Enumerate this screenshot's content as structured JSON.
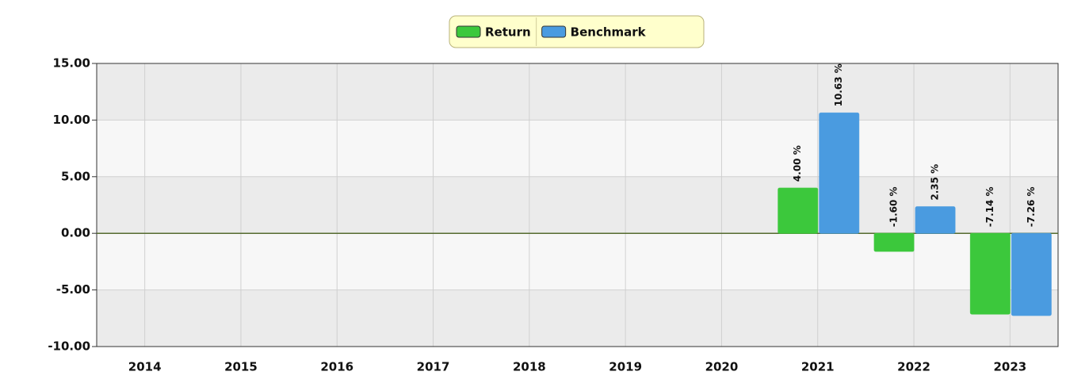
{
  "chart_data": {
    "type": "bar",
    "categories": [
      "2014",
      "2015",
      "2016",
      "2017",
      "2018",
      "2019",
      "2020",
      "2021",
      "2022",
      "2023"
    ],
    "series": [
      {
        "name": "Return",
        "color": "#3cc83c",
        "label_color": "#1f7f1f",
        "values": [
          null,
          null,
          null,
          null,
          null,
          null,
          null,
          4.0,
          -1.6,
          -7.14
        ],
        "value_labels": [
          null,
          null,
          null,
          null,
          null,
          null,
          null,
          "4.00 %",
          "-1.60 %",
          "-7.14 %"
        ]
      },
      {
        "name": "Benchmark",
        "color": "#4a9be0",
        "label_color": "#174f7f",
        "values": [
          null,
          null,
          null,
          null,
          null,
          null,
          null,
          10.63,
          2.35,
          -7.26
        ],
        "value_labels": [
          null,
          null,
          null,
          null,
          null,
          null,
          null,
          "10.63 %",
          "2.35 %",
          "-7.26 %"
        ]
      }
    ],
    "ylim": [
      -10,
      15
    ],
    "yticks": [
      {
        "value": -10,
        "label": "-10.00"
      },
      {
        "value": -5,
        "label": "-5.00"
      },
      {
        "value": 0,
        "label": "0.00"
      },
      {
        "value": 5,
        "label": "5.00"
      },
      {
        "value": 10,
        "label": "10.00"
      },
      {
        "value": 15,
        "label": "15.00"
      }
    ],
    "grid": true,
    "legend": "top"
  }
}
